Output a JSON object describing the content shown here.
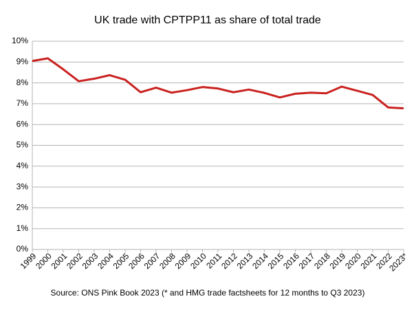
{
  "chart_data": {
    "type": "line",
    "title": "UK trade with CPTPP11 as share of total trade",
    "source": "Source: ONS Pink Book 2023 (* and HMG trade factsheets for 12 months to Q3 2023)",
    "categories": [
      "1999",
      "2000",
      "2001",
      "2002",
      "2003",
      "2004",
      "2005",
      "2006",
      "2007",
      "2008",
      "2009",
      "2010",
      "2011",
      "2012",
      "2013",
      "2014",
      "2015",
      "2016",
      "2017",
      "2018",
      "2019",
      "2020",
      "2021",
      "2022",
      "2023*"
    ],
    "series": [
      {
        "name": "UK trade with CPTPP11 share",
        "color": "#c9211e",
        "values": [
          9.05,
          9.18,
          8.65,
          8.08,
          8.2,
          8.37,
          8.15,
          7.55,
          7.77,
          7.53,
          7.65,
          7.8,
          7.73,
          7.55,
          7.68,
          7.52,
          7.3,
          7.48,
          7.53,
          7.5,
          7.82,
          7.62,
          7.42,
          6.82,
          6.78
        ]
      }
    ],
    "ylim": [
      0,
      10
    ],
    "yticks": [
      {
        "value": 0,
        "label": "0%"
      },
      {
        "value": 1,
        "label": "1%"
      },
      {
        "value": 2,
        "label": "2%"
      },
      {
        "value": 3,
        "label": "3%"
      },
      {
        "value": 4,
        "label": "4%"
      },
      {
        "value": 5,
        "label": "5%"
      },
      {
        "value": 6,
        "label": "6%"
      },
      {
        "value": 7,
        "label": "7%"
      },
      {
        "value": 8,
        "label": "8%"
      },
      {
        "value": 9,
        "label": "9%"
      },
      {
        "value": 10,
        "label": "10%"
      }
    ],
    "grid": true
  }
}
